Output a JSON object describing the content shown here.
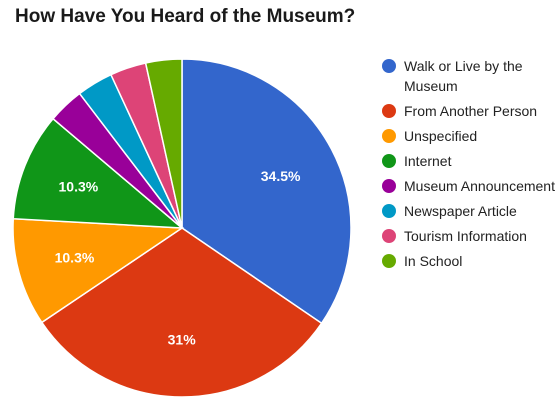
{
  "chart_data": {
    "type": "pie",
    "title": "How Have You Heard of the Museum?",
    "slices": [
      {
        "label": "Walk or Live by the Museum",
        "value": 34.5,
        "color": "#3366cc",
        "value_label": "34.5%"
      },
      {
        "label": "From Another Person",
        "value": 31.0,
        "color": "#dc3912",
        "value_label": "31%"
      },
      {
        "label": "Unspecified",
        "value": 10.3,
        "color": "#ff9900",
        "value_label": "10.3%"
      },
      {
        "label": "Internet",
        "value": 10.3,
        "color": "#109618",
        "value_label": "10.3%"
      },
      {
        "label": "Museum Announcement",
        "value": 3.45,
        "color": "#990099",
        "value_label": ""
      },
      {
        "label": "Newspaper Article",
        "value": 3.45,
        "color": "#0099c6",
        "value_label": ""
      },
      {
        "label": "Tourism Information",
        "value": 3.45,
        "color": "#dd4477",
        "value_label": ""
      },
      {
        "label": "In School",
        "value": 3.45,
        "color": "#66aa00",
        "value_label": ""
      }
    ],
    "legend_position": "right"
  }
}
